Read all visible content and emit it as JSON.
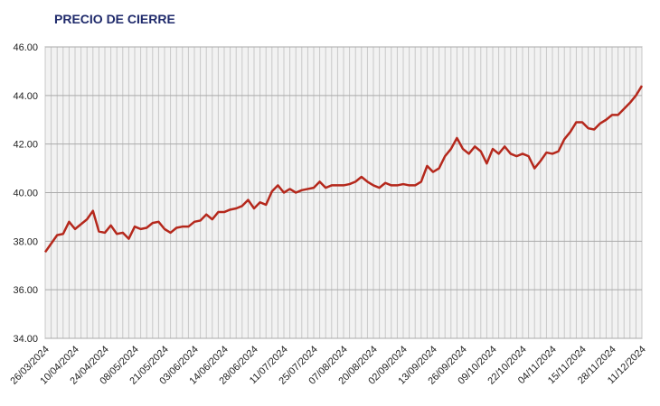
{
  "chart_data": {
    "type": "line",
    "title": "PRECIO DE CIERRE",
    "categories": [
      "26/03/2024",
      null,
      null,
      null,
      null,
      "10/04/2024",
      null,
      null,
      null,
      null,
      "24/04/2024",
      null,
      null,
      null,
      null,
      "08/05/2024",
      null,
      null,
      null,
      null,
      "21/05/2024",
      null,
      null,
      null,
      null,
      "03/06/2024",
      null,
      null,
      null,
      null,
      "14/06/2024",
      null,
      null,
      null,
      null,
      "28/06/2024",
      null,
      null,
      null,
      null,
      "11/07/2024",
      null,
      null,
      null,
      null,
      "25/07/2024",
      null,
      null,
      null,
      null,
      "07/08/2024",
      null,
      null,
      null,
      null,
      "20/08/2024",
      null,
      null,
      null,
      null,
      "02/09/2024",
      null,
      null,
      null,
      null,
      "13/09/2024",
      null,
      null,
      null,
      null,
      "26/09/2024",
      null,
      null,
      null,
      null,
      "09/10/2024",
      null,
      null,
      null,
      null,
      "22/10/2024",
      null,
      null,
      null,
      null,
      "04/11/2024",
      null,
      null,
      null,
      null,
      "15/11/2024",
      null,
      null,
      null,
      null,
      "28/11/2024",
      null,
      null,
      null,
      null,
      "11/12/2024"
    ],
    "series": [
      {
        "name": "PRECIO DE CIERRE",
        "color": "#b5281c",
        "values": [
          37.55,
          37.9,
          38.25,
          38.3,
          38.8,
          38.5,
          38.7,
          38.9,
          39.25,
          38.4,
          38.35,
          38.65,
          38.3,
          38.35,
          38.1,
          38.6,
          38.5,
          38.55,
          38.75,
          38.8,
          38.5,
          38.35,
          38.55,
          38.6,
          38.6,
          38.8,
          38.85,
          39.1,
          38.9,
          39.2,
          39.2,
          39.3,
          39.35,
          39.45,
          39.7,
          39.35,
          39.6,
          39.5,
          40.05,
          40.3,
          40.0,
          40.15,
          40.0,
          40.1,
          40.15,
          40.2,
          40.45,
          40.2,
          40.3,
          40.3,
          40.3,
          40.35,
          40.45,
          40.65,
          40.45,
          40.3,
          40.2,
          40.4,
          40.3,
          40.3,
          40.35,
          40.3,
          40.3,
          40.45,
          41.1,
          40.85,
          41.0,
          41.5,
          41.8,
          42.25,
          41.8,
          41.6,
          41.9,
          41.7,
          41.2,
          41.8,
          41.6,
          41.9,
          41.6,
          41.5,
          41.6,
          41.5,
          41.0,
          41.3,
          41.65,
          41.6,
          41.7,
          42.2,
          42.5,
          42.9,
          42.9,
          42.65,
          42.6,
          42.85,
          43.0,
          43.2,
          43.2,
          43.45,
          43.7,
          44.0,
          44.4
        ]
      }
    ],
    "ylim": [
      34,
      46
    ],
    "yticks": [
      {
        "value": 34,
        "label": "34.00"
      },
      {
        "value": 36,
        "label": "36.00"
      },
      {
        "value": 38,
        "label": "38.00"
      },
      {
        "value": 40,
        "label": "40.00"
      },
      {
        "value": 42,
        "label": "42.00"
      },
      {
        "value": 44,
        "label": "44.00"
      },
      {
        "value": 46,
        "label": "46.00"
      }
    ],
    "grid": true
  }
}
